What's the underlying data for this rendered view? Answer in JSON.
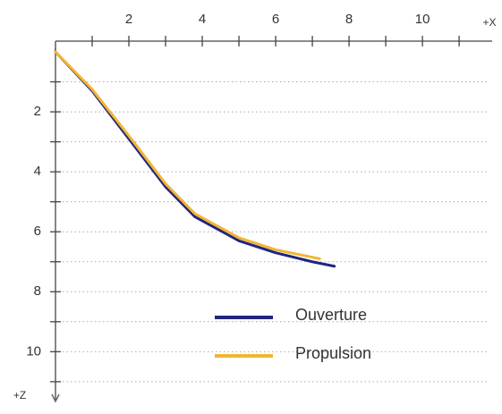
{
  "chart_data": {
    "type": "line",
    "x_label": "+X",
    "y_label": "+Z",
    "xlim": [
      0,
      11.9
    ],
    "ylim": [
      0,
      11.6
    ],
    "xticks": [
      2,
      4,
      6,
      8,
      10
    ],
    "xminor_ticks": [
      1,
      3,
      5,
      7,
      9,
      11
    ],
    "yticks": [
      2,
      4,
      6,
      8,
      10
    ],
    "yminor_ticks": [
      1,
      3,
      5,
      7,
      9,
      11
    ],
    "grid": true,
    "y_inverted": true,
    "x_axis_position": "top",
    "series": [
      {
        "name": "Ouverture",
        "color": "#23257e",
        "x": [
          0,
          1,
          2,
          3,
          3.8,
          5,
          6,
          7,
          7.6
        ],
        "values": [
          0,
          1.3,
          2.9,
          4.5,
          5.5,
          6.3,
          6.7,
          7.0,
          7.15
        ]
      },
      {
        "name": "Propulsion",
        "color": "#f2b632",
        "label_color": "#b8601c",
        "x": [
          0,
          1,
          2,
          3,
          3.8,
          5,
          6,
          7,
          7.2
        ],
        "values": [
          0,
          1.25,
          2.8,
          4.4,
          5.4,
          6.2,
          6.6,
          6.85,
          6.9
        ]
      }
    ]
  }
}
